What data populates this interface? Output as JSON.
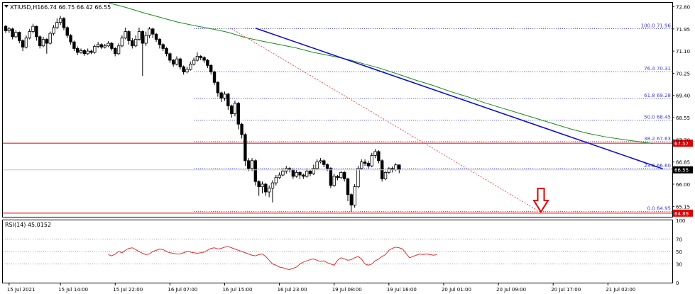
{
  "header": {
    "symbol": "XTIUSD,H1",
    "ohlc": "66.74 66.75 66.42 66.55"
  },
  "colors": {
    "bull": "#ffffff",
    "bear": "#000000",
    "candle_outline": "#000000",
    "ma": "#1a8a1a",
    "trendline": "#1010c8",
    "fib": "#4040d8",
    "hline": "#e00000",
    "diag": "#e05050",
    "arrow": "#e00000",
    "rsi_line": "#e03030",
    "rsi_levels": "#a0a0a0",
    "current_bg": "#000000",
    "hline_bg": "#e00000",
    "grid": "#c8c8c8"
  },
  "icons": {
    "down_arrow": "down-arrow-icon"
  },
  "rsi": {
    "label": "RSI(14) 45.0152",
    "axis": [
      "100",
      "70",
      "50",
      "30",
      "0"
    ]
  },
  "chart_data": {
    "type": "candlestick",
    "title": "XTIUSD,H1",
    "ylim": [
      64.75,
      72.95
    ],
    "y_ticks": [
      "72.80",
      "71.95",
      "71.10",
      "70.25",
      "69.40",
      "68.55",
      "67.70",
      "66.85",
      "66.00",
      "65.15"
    ],
    "x_ticks": [
      "15 Jul 2021",
      "15 Jul 14:00",
      "15 Jul 22:00",
      "16 Jul 07:00",
      "16 Jul 15:00",
      "16 Jul 23:00",
      "19 Jul 08:00",
      "19 Jul 16:00",
      "20 Jul 01:00",
      "20 Jul 09:00",
      "20 Jul 17:00",
      "21 Jul 02:00"
    ],
    "x_tick_index": [
      1,
      16,
      32,
      48,
      64,
      80,
      96,
      112,
      128,
      144,
      160,
      176
    ],
    "current_price_label": "66.55",
    "fib_levels": [
      {
        "label": "100.0 71.96",
        "value": 71.96
      },
      {
        "label": "76.4 70.31",
        "value": 70.31
      },
      {
        "label": "61.8 69.28",
        "value": 69.28
      },
      {
        "label": "50.0 68.45",
        "value": 68.45
      },
      {
        "label": "38.2 67.63",
        "value": 67.63
      },
      {
        "label": "23.6 66.60",
        "value": 66.6
      },
      {
        "label": "0.0 64.95",
        "value": 64.95
      }
    ],
    "horizontal_levels": [
      {
        "label": "67.57",
        "value": 67.57
      },
      {
        "label": "64.89",
        "value": 64.89
      }
    ],
    "trendline": {
      "from": [
        73,
        71.98
      ],
      "to": [
        192,
        66.59
      ]
    },
    "retracement_line": {
      "from": [
        66,
        71.96
      ],
      "to": [
        156,
        64.95
      ]
    },
    "rsi_series": [
      45,
      43,
      46,
      50,
      48,
      52,
      55,
      56,
      53,
      50,
      47,
      45,
      46,
      50,
      52,
      54,
      53,
      50,
      48,
      47,
      46,
      46,
      48,
      50,
      49,
      48,
      47,
      48,
      49,
      52,
      55,
      56,
      54,
      55,
      57,
      58,
      56,
      54,
      52,
      50,
      48,
      46,
      44,
      43,
      45,
      46,
      42,
      36,
      30,
      28,
      25,
      24,
      22,
      21,
      23,
      25,
      30,
      33,
      35,
      37,
      38,
      36,
      34,
      35,
      32,
      30,
      28,
      36,
      40,
      38,
      36,
      37,
      40,
      42,
      38,
      30,
      28,
      30,
      35,
      38,
      42,
      45,
      52,
      55,
      57,
      56,
      54,
      47,
      40,
      42,
      44,
      46,
      45,
      46,
      45,
      44,
      45
    ],
    "candles": [
      [
        72.05,
        71.88,
        72.1,
        71.8
      ],
      [
        71.88,
        71.95,
        72.02,
        71.8
      ],
      [
        71.95,
        71.65,
        72.0,
        71.55
      ],
      [
        71.65,
        71.82,
        71.9,
        71.6
      ],
      [
        71.82,
        71.5,
        71.85,
        71.4
      ],
      [
        71.5,
        71.25,
        71.55,
        71.1
      ],
      [
        71.25,
        71.6,
        71.7,
        71.2
      ],
      [
        71.6,
        71.85,
        71.95,
        71.55
      ],
      [
        71.85,
        72.05,
        72.15,
        71.78
      ],
      [
        72.05,
        71.65,
        72.08,
        71.5
      ],
      [
        71.65,
        71.3,
        71.7,
        71.2
      ],
      [
        71.3,
        71.55,
        71.65,
        71.25
      ],
      [
        71.55,
        71.4,
        71.6,
        71.0
      ],
      [
        71.4,
        71.78,
        71.85,
        71.35
      ],
      [
        71.78,
        72.0,
        72.1,
        71.7
      ],
      [
        72.0,
        72.2,
        72.35,
        71.95
      ],
      [
        72.2,
        72.35,
        72.45,
        72.1
      ],
      [
        72.35,
        72.0,
        72.4,
        71.9
      ],
      [
        72.0,
        71.7,
        72.05,
        71.6
      ],
      [
        71.7,
        71.45,
        71.75,
        71.35
      ],
      [
        71.45,
        71.2,
        71.5,
        71.1
      ],
      [
        71.2,
        71.05,
        71.28,
        70.95
      ],
      [
        71.05,
        71.12,
        71.2,
        71.0
      ],
      [
        71.12,
        71.0,
        71.18,
        70.92
      ],
      [
        71.0,
        71.1,
        71.2,
        70.95
      ],
      [
        71.1,
        71.05,
        71.15,
        70.98
      ],
      [
        71.05,
        71.28,
        71.35,
        71.0
      ],
      [
        71.28,
        71.35,
        71.45,
        71.22
      ],
      [
        71.35,
        71.25,
        71.4,
        71.18
      ],
      [
        71.25,
        71.3,
        71.38,
        71.2
      ],
      [
        71.3,
        71.4,
        71.48,
        71.25
      ],
      [
        71.4,
        71.2,
        71.45,
        71.12
      ],
      [
        71.2,
        71.0,
        71.25,
        70.9
      ],
      [
        71.0,
        71.3,
        71.4,
        70.95
      ],
      [
        71.3,
        71.6,
        71.7,
        71.25
      ],
      [
        71.6,
        71.85,
        72.0,
        71.55
      ],
      [
        71.85,
        71.5,
        71.9,
        71.35
      ],
      [
        71.5,
        71.3,
        71.6,
        71.2
      ],
      [
        71.3,
        71.55,
        71.7,
        71.25
      ],
      [
        71.55,
        71.85,
        72.0,
        71.5
      ],
      [
        71.85,
        71.4,
        71.9,
        70.15
      ],
      [
        71.4,
        71.7,
        71.85,
        71.3
      ],
      [
        71.7,
        71.95,
        72.02,
        71.6
      ],
      [
        71.95,
        71.75,
        72.0,
        71.6
      ],
      [
        71.75,
        71.55,
        71.8,
        71.45
      ],
      [
        71.55,
        71.35,
        71.6,
        71.2
      ],
      [
        71.35,
        71.2,
        71.4,
        71.1
      ],
      [
        71.2,
        71.0,
        71.25,
        70.9
      ],
      [
        71.0,
        70.75,
        71.05,
        70.65
      ],
      [
        70.75,
        70.6,
        70.8,
        70.5
      ],
      [
        70.6,
        70.8,
        70.9,
        70.55
      ],
      [
        70.8,
        70.5,
        70.85,
        70.4
      ],
      [
        70.5,
        70.3,
        70.55,
        70.2
      ],
      [
        70.3,
        70.4,
        70.5,
        70.25
      ],
      [
        70.4,
        70.6,
        70.7,
        70.35
      ],
      [
        70.6,
        70.75,
        70.85,
        70.55
      ],
      [
        70.75,
        70.9,
        71.05,
        70.7
      ],
      [
        70.9,
        70.85,
        70.95,
        70.75
      ],
      [
        70.85,
        70.75,
        70.9,
        70.65
      ],
      [
        70.75,
        70.55,
        70.8,
        70.45
      ],
      [
        70.55,
        70.3,
        70.6,
        70.2
      ],
      [
        70.3,
        69.9,
        70.35,
        69.8
      ],
      [
        69.9,
        69.5,
        69.95,
        69.35
      ],
      [
        69.5,
        69.3,
        69.55,
        69.15
      ],
      [
        69.3,
        69.45,
        69.55,
        69.2
      ],
      [
        69.45,
        69.0,
        69.5,
        68.85
      ],
      [
        69.0,
        68.7,
        69.05,
        68.55
      ],
      [
        68.7,
        69.1,
        69.2,
        68.6
      ],
      [
        69.1,
        68.3,
        69.15,
        68.1
      ],
      [
        68.3,
        67.9,
        68.35,
        67.75
      ],
      [
        67.9,
        66.9,
        67.95,
        66.7
      ],
      [
        66.9,
        66.6,
        67.0,
        66.5
      ],
      [
        66.6,
        66.9,
        67.0,
        66.5
      ],
      [
        66.9,
        66.1,
        66.95,
        65.95
      ],
      [
        66.1,
        65.9,
        66.15,
        65.55
      ],
      [
        65.9,
        66.0,
        66.1,
        65.65
      ],
      [
        66.0,
        65.7,
        66.05,
        65.55
      ],
      [
        65.7,
        65.85,
        65.95,
        65.5
      ],
      [
        65.85,
        66.05,
        66.15,
        65.3
      ],
      [
        66.05,
        66.25,
        66.35,
        65.95
      ],
      [
        66.25,
        66.35,
        66.45,
        66.2
      ],
      [
        66.35,
        66.5,
        66.6,
        66.3
      ],
      [
        66.5,
        66.6,
        66.7,
        66.4
      ],
      [
        66.6,
        66.55,
        66.65,
        66.45
      ],
      [
        66.55,
        66.3,
        66.6,
        66.2
      ],
      [
        66.3,
        66.45,
        66.55,
        66.25
      ],
      [
        66.45,
        66.35,
        66.5,
        66.2
      ],
      [
        66.35,
        66.3,
        66.4,
        66.2
      ],
      [
        66.3,
        66.5,
        66.6,
        66.25
      ],
      [
        66.5,
        66.4,
        66.55,
        66.3
      ],
      [
        66.4,
        66.6,
        66.75,
        66.35
      ],
      [
        66.6,
        66.85,
        66.95,
        66.55
      ],
      [
        66.85,
        66.9,
        67.0,
        66.8
      ],
      [
        66.9,
        66.75,
        66.95,
        66.65
      ],
      [
        66.75,
        66.6,
        66.8,
        66.5
      ],
      [
        66.6,
        65.95,
        66.65,
        65.85
      ],
      [
        65.95,
        66.3,
        66.4,
        65.9
      ],
      [
        66.3,
        66.25,
        66.35,
        66.15
      ],
      [
        66.25,
        66.45,
        66.5,
        66.2
      ],
      [
        66.45,
        66.2,
        66.5,
        66.1
      ],
      [
        66.2,
        65.6,
        66.25,
        65.35
      ],
      [
        65.6,
        65.2,
        65.65,
        64.95
      ],
      [
        65.2,
        65.9,
        66.0,
        65.1
      ],
      [
        65.9,
        66.6,
        66.7,
        65.85
      ],
      [
        66.6,
        66.85,
        66.95,
        66.55
      ],
      [
        66.85,
        66.8,
        66.95,
        66.7
      ],
      [
        66.8,
        66.7,
        66.9,
        66.6
      ],
      [
        66.7,
        67.1,
        67.2,
        66.65
      ],
      [
        67.1,
        67.25,
        67.35,
        67.0
      ],
      [
        67.25,
        66.9,
        67.3,
        66.8
      ],
      [
        66.9,
        66.2,
        66.95,
        66.1
      ],
      [
        66.2,
        66.45,
        66.5,
        66.15
      ],
      [
        66.45,
        66.6,
        66.65,
        66.4
      ],
      [
        66.6,
        66.55,
        66.68,
        66.45
      ],
      [
        66.55,
        66.74,
        66.8,
        66.5
      ],
      [
        66.74,
        66.55,
        66.75,
        66.42
      ]
    ],
    "ma_series": [
      [
        30,
        72.95
      ],
      [
        35,
        72.78
      ],
      [
        40,
        72.58
      ],
      [
        45,
        72.4
      ],
      [
        50,
        72.22
      ],
      [
        55,
        72.08
      ],
      [
        60,
        71.96
      ],
      [
        65,
        71.82
      ],
      [
        70,
        71.62
      ],
      [
        75,
        71.48
      ],
      [
        80,
        71.35
      ],
      [
        85,
        71.22
      ],
      [
        90,
        71.05
      ],
      [
        95,
        70.92
      ],
      [
        100,
        70.78
      ],
      [
        105,
        70.6
      ],
      [
        110,
        70.42
      ],
      [
        115,
        70.2
      ],
      [
        120,
        69.98
      ],
      [
        125,
        69.78
      ],
      [
        130,
        69.55
      ],
      [
        135,
        69.35
      ],
      [
        140,
        69.12
      ],
      [
        145,
        68.92
      ],
      [
        150,
        68.72
      ],
      [
        155,
        68.52
      ],
      [
        160,
        68.32
      ],
      [
        165,
        68.12
      ],
      [
        170,
        67.95
      ],
      [
        175,
        67.82
      ],
      [
        180,
        67.72
      ],
      [
        185,
        67.63
      ],
      [
        189,
        67.56
      ]
    ]
  }
}
